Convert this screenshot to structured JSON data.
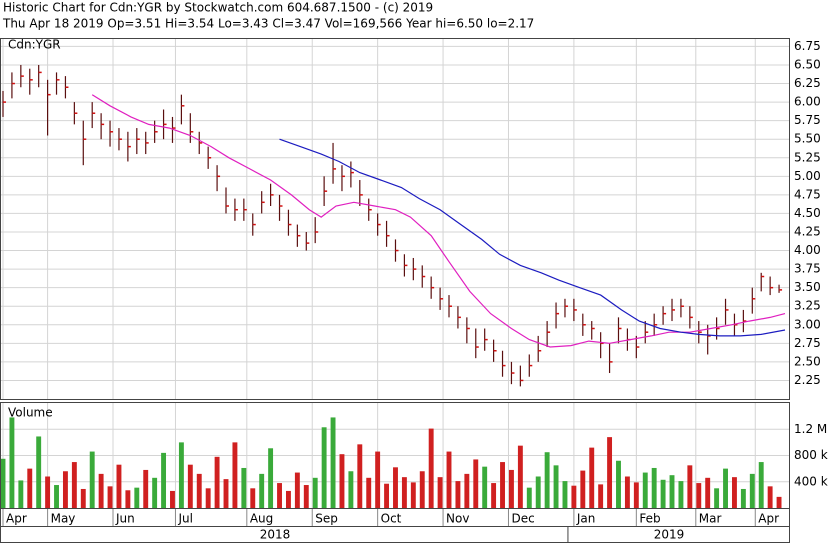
{
  "chart_data": {
    "type": "ohlc",
    "title": "Historic Chart for Cdn:YGR by Stockwatch.com 604.687.1500 - (c) 2019",
    "subtitle": "Thu Apr 18 2019  Op=3.51  Hi=3.54  Lo=3.43  Cl=3.47  Vol=169,566  Year hi=6.50  lo=2.17",
    "symbol_label": "Cdn:YGR",
    "volume_label": "Volume",
    "xlim": [
      0,
      263
    ],
    "xticks": [
      {
        "value": 0,
        "label": "Apr"
      },
      {
        "value": 15,
        "label": "May"
      },
      {
        "value": 37,
        "label": "Jun"
      },
      {
        "value": 58,
        "label": "Jul"
      },
      {
        "value": 82,
        "label": "Aug"
      },
      {
        "value": 104,
        "label": "Sep"
      },
      {
        "value": 126,
        "label": "Oct"
      },
      {
        "value": 148,
        "label": "Nov"
      },
      {
        "value": 170,
        "label": "Dec"
      },
      {
        "value": 192,
        "label": "Jan"
      },
      {
        "value": 213,
        "label": "Feb"
      },
      {
        "value": 233,
        "label": "Mar"
      },
      {
        "value": 253,
        "label": "Apr"
      }
    ],
    "year_labels": [
      {
        "value": 91.5,
        "label": "2018"
      },
      {
        "value": 224,
        "label": "2019"
      }
    ],
    "year_divider": 190,
    "ylim": [
      2.0,
      6.85
    ],
    "yticks": [
      2.25,
      {
        "value": 2.5,
        "label": "2.50"
      },
      2.75,
      {
        "value": 3,
        "label": "3.00"
      },
      3.25,
      {
        "value": 3.5,
        "label": "3.50"
      },
      3.75,
      {
        "value": 4,
        "label": "4.00"
      },
      4.25,
      {
        "value": 4.5,
        "label": "4.50"
      },
      4.75,
      {
        "value": 5,
        "label": "5.00"
      },
      5.25,
      {
        "value": 5.5,
        "label": "5.50"
      },
      5.75,
      {
        "value": 6,
        "label": "6.00"
      },
      6.25,
      {
        "value": 6.5,
        "label": "6.50"
      },
      6.75
    ],
    "vlim": [
      0,
      1600000
    ],
    "vticks": [
      {
        "value": 400000,
        "label": "400 k"
      },
      {
        "value": 800000,
        "label": "800 k"
      },
      {
        "value": 1200000,
        "label": "1.2 M"
      }
    ],
    "grid": true,
    "bar_color": "#5a0f0f",
    "close_color": "#d01010",
    "up_color": "#3aaa3a",
    "down_color": "#d02020",
    "x": [
      0,
      3,
      6,
      9,
      12,
      15,
      18,
      21,
      24,
      27,
      30,
      33,
      36,
      39,
      42,
      45,
      48,
      51,
      54,
      57,
      60,
      63,
      66,
      69,
      72,
      75,
      78,
      81,
      84,
      87,
      90,
      93,
      96,
      99,
      102,
      105,
      108,
      111,
      114,
      117,
      120,
      123,
      126,
      129,
      132,
      135,
      138,
      141,
      144,
      147,
      150,
      153,
      156,
      159,
      162,
      165,
      168,
      171,
      174,
      177,
      180,
      183,
      186,
      189,
      192,
      195,
      198,
      201,
      204,
      207,
      210,
      213,
      216,
      219,
      222,
      225,
      228,
      231,
      234,
      237,
      240,
      243,
      246,
      249,
      252,
      255,
      258,
      261
    ],
    "close": [
      6.0,
      6.25,
      6.35,
      6.3,
      6.4,
      6.1,
      6.3,
      6.2,
      5.85,
      5.5,
      5.85,
      5.7,
      5.6,
      5.5,
      5.4,
      5.5,
      5.45,
      5.6,
      5.7,
      5.65,
      5.95,
      5.6,
      5.45,
      5.25,
      5.0,
      4.6,
      4.55,
      4.55,
      4.35,
      4.65,
      4.75,
      4.6,
      4.35,
      4.2,
      4.1,
      4.25,
      4.8,
      5.1,
      5.0,
      5.05,
      4.75,
      4.55,
      4.35,
      4.2,
      4.0,
      3.8,
      3.75,
      3.65,
      3.5,
      3.35,
      3.25,
      3.1,
      2.95,
      2.7,
      2.8,
      2.65,
      2.45,
      2.35,
      2.25,
      2.45,
      2.65,
      2.9,
      3.15,
      3.25,
      3.2,
      3.0,
      2.95,
      2.75,
      2.5,
      2.95,
      2.8,
      2.7,
      2.9,
      3.0,
      3.15,
      3.2,
      3.25,
      3.1,
      2.9,
      2.85,
      2.95,
      3.2,
      3.0,
      3.05,
      3.35,
      3.65,
      3.5,
      3.47
    ],
    "high": [
      6.15,
      6.4,
      6.5,
      6.45,
      6.5,
      6.3,
      6.4,
      6.35,
      6.0,
      5.75,
      6.0,
      5.85,
      5.75,
      5.65,
      5.6,
      5.65,
      5.6,
      5.75,
      5.9,
      5.8,
      6.1,
      5.85,
      5.6,
      5.4,
      5.15,
      4.85,
      4.7,
      4.7,
      4.5,
      4.8,
      4.9,
      4.75,
      4.55,
      4.35,
      4.25,
      4.45,
      5.0,
      5.45,
      5.15,
      5.2,
      4.95,
      4.7,
      4.5,
      4.4,
      4.15,
      3.95,
      3.9,
      3.8,
      3.65,
      3.5,
      3.4,
      3.25,
      3.1,
      2.95,
      2.95,
      2.8,
      2.65,
      2.5,
      2.45,
      2.6,
      2.85,
      3.05,
      3.3,
      3.35,
      3.35,
      3.15,
      3.05,
      2.9,
      2.75,
      3.1,
      2.95,
      2.85,
      3.05,
      3.15,
      3.25,
      3.35,
      3.35,
      3.25,
      3.05,
      3.0,
      3.1,
      3.35,
      3.15,
      3.2,
      3.5,
      3.7,
      3.65,
      3.54
    ],
    "low": [
      5.8,
      6.05,
      6.2,
      6.1,
      6.2,
      5.55,
      6.1,
      6.05,
      5.7,
      5.15,
      5.65,
      5.5,
      5.4,
      5.35,
      5.2,
      5.3,
      5.3,
      5.45,
      5.5,
      5.45,
      5.7,
      5.45,
      5.3,
      5.1,
      4.8,
      4.5,
      4.4,
      4.4,
      4.2,
      4.5,
      4.6,
      4.4,
      4.2,
      4.05,
      4.0,
      4.1,
      4.6,
      4.9,
      4.8,
      4.85,
      4.6,
      4.4,
      4.2,
      4.05,
      3.85,
      3.65,
      3.6,
      3.5,
      3.35,
      3.2,
      3.1,
      2.95,
      2.75,
      2.55,
      2.65,
      2.5,
      2.3,
      2.2,
      2.17,
      2.3,
      2.5,
      2.7,
      2.95,
      3.1,
      3.05,
      2.85,
      2.8,
      2.55,
      2.35,
      2.75,
      2.65,
      2.55,
      2.75,
      2.85,
      3.0,
      3.05,
      3.1,
      2.95,
      2.75,
      2.6,
      2.8,
      3.0,
      2.85,
      2.9,
      3.15,
      3.45,
      3.4,
      3.43
    ],
    "volume": [
      750000,
      1380000,
      420000,
      600000,
      1090000,
      480000,
      350000,
      560000,
      700000,
      290000,
      860000,
      520000,
      330000,
      660000,
      270000,
      310000,
      580000,
      460000,
      840000,
      260000,
      1000000,
      660000,
      520000,
      300000,
      780000,
      440000,
      1000000,
      610000,
      300000,
      520000,
      910000,
      380000,
      260000,
      540000,
      350000,
      460000,
      1230000,
      1380000,
      820000,
      560000,
      970000,
      460000,
      860000,
      370000,
      620000,
      470000,
      390000,
      560000,
      1210000,
      470000,
      860000,
      410000,
      520000,
      740000,
      630000,
      380000,
      700000,
      580000,
      950000,
      310000,
      480000,
      850000,
      650000,
      410000,
      340000,
      570000,
      920000,
      360000,
      1080000,
      720000,
      480000,
      390000,
      540000,
      610000,
      430000,
      500000,
      410000,
      650000,
      380000,
      460000,
      300000,
      600000,
      470000,
      290000,
      520000,
      700000,
      330000,
      169566
    ],
    "moving_averages": [
      {
        "name": "MA50",
        "color": "#e020c0",
        "x": [
          30,
          36,
          43,
          49,
          56,
          63,
          70,
          76,
          83,
          90,
          97,
          103,
          107,
          112,
          118,
          125,
          132,
          137,
          144,
          150,
          157,
          164,
          171,
          177,
          184,
          191,
          197,
          204,
          211,
          218,
          224,
          231,
          238,
          245,
          251,
          258,
          263
        ],
        "values": [
          6.1,
          5.95,
          5.8,
          5.7,
          5.65,
          5.55,
          5.4,
          5.25,
          5.1,
          4.95,
          4.75,
          4.55,
          4.45,
          4.6,
          4.65,
          4.6,
          4.55,
          4.45,
          4.2,
          3.85,
          3.45,
          3.15,
          2.95,
          2.8,
          2.7,
          2.72,
          2.78,
          2.75,
          2.8,
          2.85,
          2.9,
          2.9,
          2.95,
          3.0,
          3.05,
          3.1,
          3.15
        ]
      },
      {
        "name": "MA200",
        "color": "#1c1cc0",
        "x": [
          93,
          100,
          107,
          113,
          120,
          127,
          134,
          140,
          147,
          154,
          161,
          167,
          174,
          181,
          187,
          194,
          201,
          208,
          214,
          221,
          228,
          234,
          241,
          248,
          255,
          263
        ],
        "values": [
          5.5,
          5.4,
          5.3,
          5.2,
          5.05,
          4.95,
          4.85,
          4.7,
          4.55,
          4.35,
          4.15,
          3.95,
          3.8,
          3.7,
          3.6,
          3.5,
          3.4,
          3.2,
          3.05,
          2.95,
          2.9,
          2.87,
          2.85,
          2.85,
          2.87,
          2.93
        ]
      }
    ]
  }
}
